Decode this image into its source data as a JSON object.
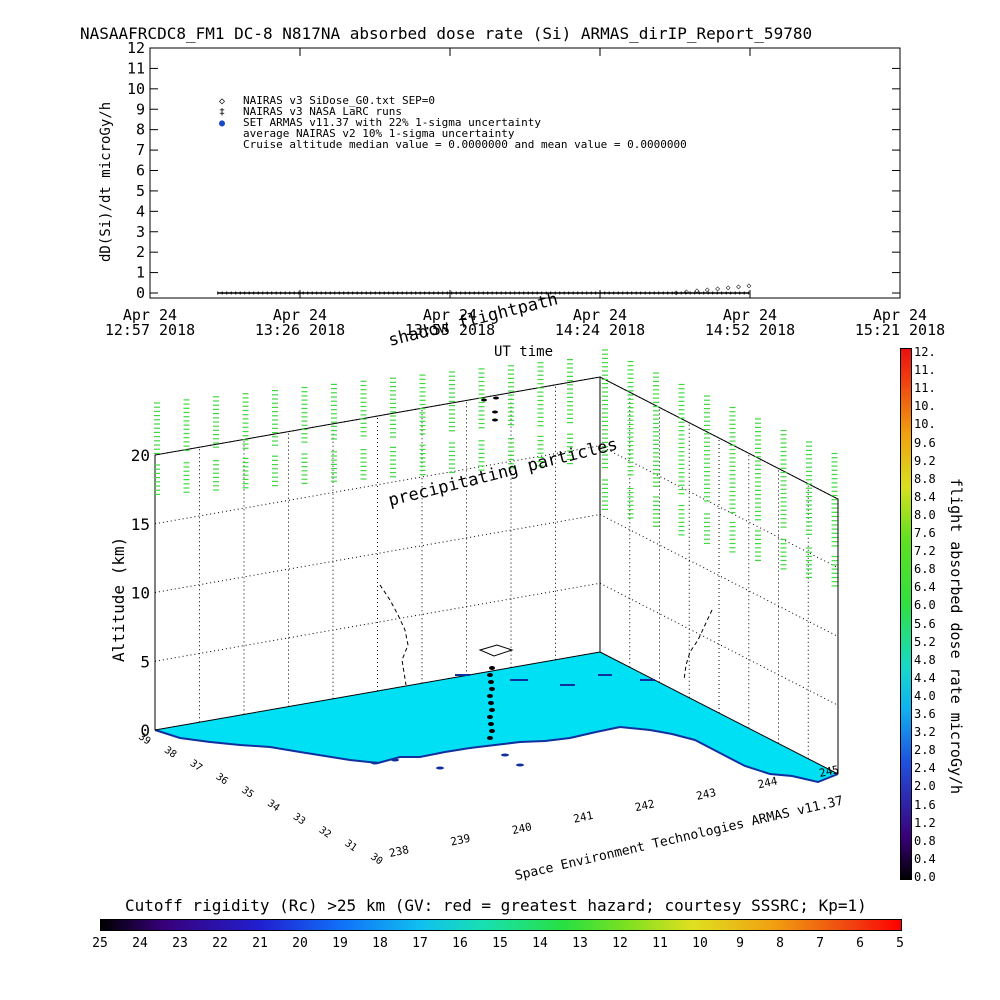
{
  "chart_data": [
    {
      "type": "line",
      "title": "NASAAFRCDC8_FM1 DC-8   N817NA absorbed dose rate (Si) ARMAS_dirIP_Report_59780",
      "ylabel": "dD(Si)/dt microGy/h",
      "xlabel": "UT time",
      "ylim": [
        0,
        12
      ],
      "yticks": [
        "0",
        "1",
        "2",
        "3",
        "4",
        "5",
        "6",
        "7",
        "8",
        "9",
        "10",
        "11",
        "12"
      ],
      "xticks": [
        [
          "Apr 24",
          "12:57 2018"
        ],
        [
          "Apr 24",
          "13:26 2018"
        ],
        [
          "Apr 24",
          "13:55 2018"
        ],
        [
          "Apr 24",
          "14:24 2018"
        ],
        [
          "Apr 24",
          "14:52 2018"
        ],
        [
          "Apr 24",
          "15:21 2018"
        ]
      ],
      "legend": {
        "placement": "top-left",
        "entries": [
          {
            "marker": "◇",
            "label": "NAIRAS v3 SiDose_G0.txt SEP=0"
          },
          {
            "marker": "‡",
            "label": "NAIRAS v3 NASA LaRC runs"
          },
          {
            "marker": "●",
            "label": "SET ARMAS v11.37 with 22% 1-sigma uncertainty",
            "color": "#1848c8"
          },
          {
            "marker": "",
            "label": "average NAIRAS v2 10% 1-sigma uncertainty"
          },
          {
            "marker": "",
            "label": "Cruise altitude median value = 0.0000000 and mean value = 0.0000000"
          }
        ]
      },
      "series": [
        {
          "name": "SET ARMAS v11.37 with 22% 1-sigma uncertainty",
          "x_start": "13:10",
          "x_end": "14:52",
          "values_constant": 0.0
        },
        {
          "name": "NAIRAS v3 SiDose_G0.txt SEP=0",
          "points": [
            [
              "14:38",
              0.05
            ],
            [
              "14:40",
              0.1
            ],
            [
              "14:42",
              0.15
            ],
            [
              "14:44",
              0.2
            ],
            [
              "14:46",
              0.25
            ],
            [
              "14:48",
              0.3
            ],
            [
              "14:50",
              0.35
            ],
            [
              "14:52",
              0.4
            ]
          ]
        }
      ]
    },
    {
      "type": "scatter",
      "title": "",
      "zlabel": "Altitude (km)",
      "zticks": [
        "0",
        "5",
        "10",
        "15",
        "20"
      ],
      "lat_ticks": [
        "30",
        "31",
        "32",
        "33",
        "34",
        "35",
        "36",
        "37",
        "38",
        "39"
      ],
      "lon_ticks": [
        "238",
        "239",
        "240",
        "241",
        "242",
        "243",
        "244",
        "245"
      ],
      "annotations": [
        "precipitating particles",
        "shadow flightpath",
        "Space Environment Technologies ARMAS v11.37"
      ],
      "colorbar": {
        "label": "flight absorbed dose rate microGy/h",
        "ticks": [
          "0.0",
          "0.4",
          "0.8",
          "1.2",
          "1.6",
          "2.0",
          "2.4",
          "2.8",
          "3.2",
          "3.6",
          "4.0",
          "4.4",
          "4.8",
          "5.2",
          "5.6",
          "6.0",
          "6.4",
          "6.8",
          "7.2",
          "7.6",
          "8.0",
          "8.4",
          "8.8",
          "9.2",
          "9.6",
          "10.",
          "10.",
          "11.",
          "11.",
          "12."
        ]
      },
      "rigidity_bar": {
        "label": "Cutoff rigidity (Rc) >25 km (GV: red = greatest hazard; courtesy SSSRC; Kp=1)",
        "ticks": [
          "25",
          "24",
          "23",
          "22",
          "21",
          "20",
          "19",
          "18",
          "17",
          "16",
          "15",
          "14",
          "13",
          "12",
          "11",
          "10",
          "9",
          "8",
          "7",
          "6",
          "5"
        ]
      }
    }
  ],
  "colors": {
    "ocean_fill": "#00e0f4",
    "precip_marks": "#40d840",
    "armas_series": "#1848c8"
  }
}
